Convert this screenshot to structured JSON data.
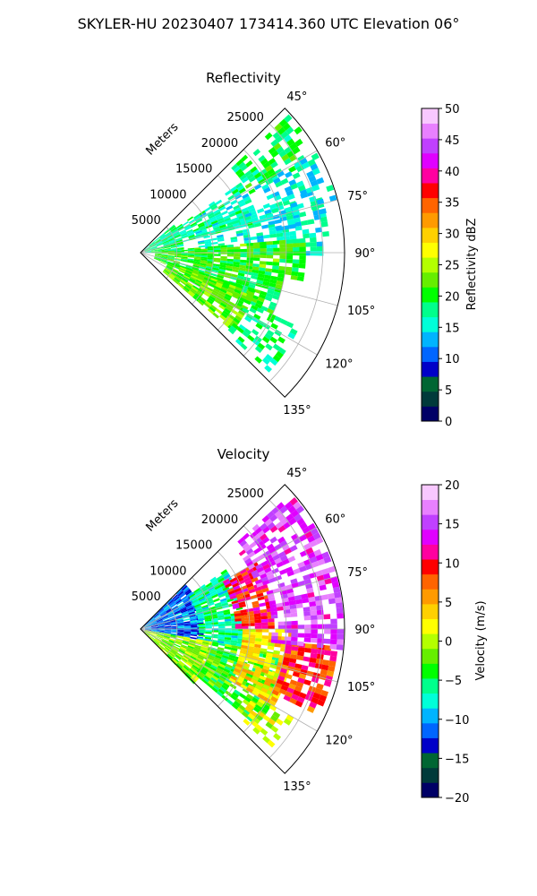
{
  "suptitle": "SKYLER-HU  20230407  173414.360 UTC Elevation 06°",
  "chart_data": [
    {
      "type": "heatmap",
      "projection": "polar-sector",
      "title": "Reflectivity",
      "radial_axis_label": "Meters",
      "radial_ticks": [
        5000,
        10000,
        15000,
        20000,
        25000
      ],
      "radial_tick_labels": [
        "5000",
        "10000",
        "15000",
        "20000",
        "25000"
      ],
      "rlim": [
        0,
        28000
      ],
      "theta_ticks": [
        45,
        60,
        75,
        90,
        105,
        120,
        135
      ],
      "theta_tick_labels": [
        "45°",
        "60°",
        "75°",
        "90°",
        "105°",
        "120°",
        "135°"
      ],
      "theta_lim": [
        45,
        135
      ],
      "grid": true,
      "colorbar": {
        "label": "Reflectivity dBZ",
        "min": 0,
        "max": 50,
        "ticks": [
          0,
          5,
          10,
          15,
          20,
          25,
          30,
          35,
          40,
          45,
          50
        ],
        "tick_labels": [
          "0",
          "5",
          "10",
          "15",
          "20",
          "25",
          "30",
          "35",
          "40",
          "45",
          "50"
        ],
        "colors": [
          "#000066",
          "#003a3a",
          "#006633",
          "#0000c8",
          "#0066ff",
          "#00b4ff",
          "#00ffd8",
          "#00ff8c",
          "#00ff00",
          "#66ee00",
          "#b4ff00",
          "#ffff00",
          "#ffd000",
          "#ff9a00",
          "#ff6400",
          "#ff0000",
          "#ff00a0",
          "#e000ff",
          "#c040ff",
          "#e880ff",
          "#f8c8ff"
        ]
      },
      "field": [
        {
          "theta": [
            47,
            62
          ],
          "r": [
            17000,
            27000
          ],
          "value": 19,
          "density": 0.55
        },
        {
          "theta": [
            55,
            75
          ],
          "r": [
            6000,
            16000
          ],
          "value": 17,
          "density": 0.75
        },
        {
          "theta": [
            50,
            90
          ],
          "r": [
            0,
            6000
          ],
          "value": 18,
          "density": 0.9
        },
        {
          "theta": [
            70,
            90
          ],
          "r": [
            8000,
            26000
          ],
          "value": 16,
          "density": 0.55
        },
        {
          "theta": [
            85,
            100
          ],
          "r": [
            2000,
            22000
          ],
          "value": 21,
          "density": 0.85
        },
        {
          "theta": [
            100,
            115
          ],
          "r": [
            2000,
            20000
          ],
          "value": 20,
          "density": 0.85
        },
        {
          "theta": [
            108,
            130
          ],
          "r": [
            4000,
            16000
          ],
          "value": 22,
          "density": 0.9
        },
        {
          "theta": [
            115,
            132
          ],
          "r": [
            16000,
            24000
          ],
          "value": 18,
          "density": 0.45
        },
        {
          "theta": [
            60,
            80
          ],
          "r": [
            18000,
            27500
          ],
          "value": 15,
          "density": 0.35
        }
      ]
    },
    {
      "type": "heatmap",
      "projection": "polar-sector",
      "title": "Velocity",
      "radial_axis_label": "Meters",
      "radial_ticks": [
        5000,
        10000,
        15000,
        20000,
        25000
      ],
      "radial_tick_labels": [
        "5000",
        "10000",
        "15000",
        "20000",
        "25000"
      ],
      "rlim": [
        0,
        28000
      ],
      "theta_ticks": [
        45,
        60,
        75,
        90,
        105,
        120,
        135
      ],
      "theta_tick_labels": [
        "45°",
        "60°",
        "75°",
        "90°",
        "105°",
        "120°",
        "135°"
      ],
      "theta_lim": [
        45,
        135
      ],
      "grid": true,
      "colorbar": {
        "label": "Velocity (m/s)",
        "min": -20,
        "max": 20,
        "ticks": [
          -20,
          -15,
          -10,
          -5,
          0,
          5,
          10,
          15,
          20
        ],
        "tick_labels": [
          "−20",
          "−15",
          "−10",
          "−5",
          "0",
          "5",
          "10",
          "15",
          "20"
        ],
        "colors": [
          "#000066",
          "#003a3a",
          "#006633",
          "#0000c8",
          "#0066ff",
          "#00b4ff",
          "#00ffd8",
          "#00ff8c",
          "#00ff00",
          "#66ee00",
          "#b4ff00",
          "#ffff00",
          "#ffd000",
          "#ff9a00",
          "#ff6400",
          "#ff0000",
          "#ff00a0",
          "#e000ff",
          "#c040ff",
          "#e880ff",
          "#f8c8ff"
        ]
      },
      "field": [
        {
          "theta": [
            45,
            100
          ],
          "r": [
            0,
            8000
          ],
          "value": -11,
          "density": 0.95
        },
        {
          "theta": [
            55,
            100
          ],
          "r": [
            8000,
            14000
          ],
          "value": -6,
          "density": 0.9
        },
        {
          "theta": [
            100,
            135
          ],
          "r": [
            0,
            10000
          ],
          "value": -1,
          "density": 0.9
        },
        {
          "theta": [
            100,
            130
          ],
          "r": [
            10000,
            20000
          ],
          "value": -3,
          "density": 0.85
        },
        {
          "theta": [
            60,
            90
          ],
          "r": [
            13000,
            18000
          ],
          "value": 10,
          "density": 0.85
        },
        {
          "theta": [
            90,
            120
          ],
          "r": [
            14000,
            21000
          ],
          "value": 3,
          "density": 0.85
        },
        {
          "theta": [
            95,
            115
          ],
          "r": [
            20000,
            27000
          ],
          "value": 9,
          "density": 0.8
        },
        {
          "theta": [
            48,
            70
          ],
          "r": [
            17000,
            27500
          ],
          "value": 15,
          "density": 0.7
        },
        {
          "theta": [
            72,
            95
          ],
          "r": [
            18000,
            27500
          ],
          "value": 15,
          "density": 0.7
        },
        {
          "theta": [
            120,
            132
          ],
          "r": [
            18000,
            24000
          ],
          "value": 1,
          "density": 0.45
        }
      ]
    }
  ]
}
